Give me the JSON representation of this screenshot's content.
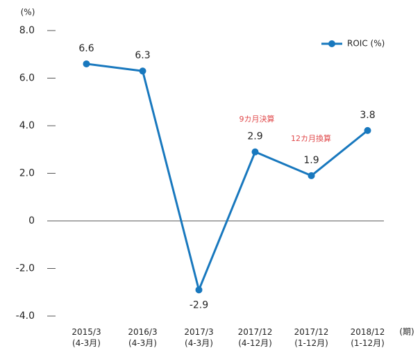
{
  "chart_data": {
    "type": "line",
    "y_unit": "(%)",
    "x_unit": "(期)",
    "categories": [
      [
        "2015/3",
        "(4-3月)"
      ],
      [
        "2016/3",
        "(4-3月)"
      ],
      [
        "2017/3",
        "(4-3月)"
      ],
      [
        "2017/12",
        "(4-12月)"
      ],
      [
        "2017/12",
        "(1-12月)"
      ],
      [
        "2018/12",
        "(1-12月)"
      ]
    ],
    "series": [
      {
        "name": "ROIC (%)",
        "color": "#1878be",
        "values": [
          6.6,
          6.3,
          -2.9,
          2.9,
          1.9,
          3.8
        ]
      }
    ],
    "ylim": [
      -4,
      8
    ],
    "yticks": [
      {
        "value": 8,
        "label": "8.0"
      },
      {
        "value": 6,
        "label": "6.0"
      },
      {
        "value": 4,
        "label": "4.0"
      },
      {
        "value": 2,
        "label": "2.0"
      },
      0,
      {
        "value": -2,
        "label": "-2.0"
      },
      {
        "value": -4,
        "label": "-4.0"
      }
    ],
    "annotations": [
      "9カ月決算",
      "12カ月換算"
    ],
    "legend": "upper right"
  }
}
